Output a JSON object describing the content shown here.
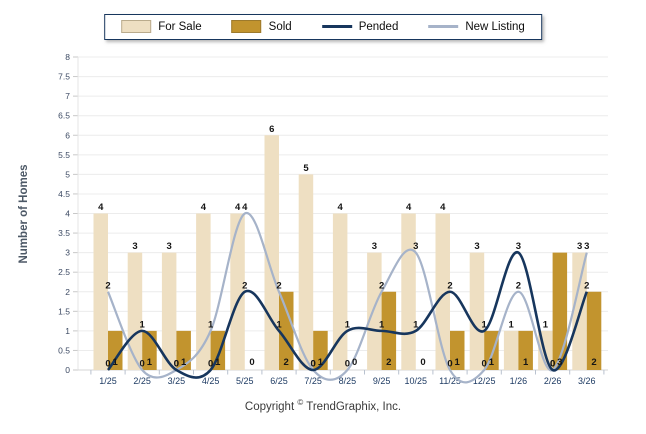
{
  "legend": {
    "position": "top"
  },
  "footer": {
    "copyright_prefix": "Copyright",
    "copyright_symbol": "©",
    "copyright_suffix": "TrendGraphix, Inc."
  },
  "chart_data": {
    "type": "combo-bar-line",
    "title": "",
    "ylabel": "Number of Homes",
    "xlabel": "",
    "ylim": [
      0,
      8
    ],
    "ytick_step": 0.5,
    "grid": true,
    "legend_position": "top",
    "categories": [
      "1/25",
      "2/25",
      "3/25",
      "4/25",
      "5/25",
      "6/25",
      "7/25",
      "8/25",
      "9/25",
      "10/25",
      "11/25",
      "12/25",
      "1/26",
      "2/26",
      "3/26"
    ],
    "series": [
      {
        "name": "For Sale",
        "type": "bar",
        "color": "#EEDFC2",
        "values": [
          4,
          3,
          3,
          4,
          4,
          6,
          5,
          4,
          3,
          4,
          4,
          3,
          1,
          1,
          3
        ]
      },
      {
        "name": "Sold",
        "type": "bar",
        "color": "#C2942E",
        "values": [
          1,
          1,
          1,
          1,
          0,
          2,
          1,
          0,
          2,
          0,
          1,
          1,
          1,
          3,
          2
        ]
      },
      {
        "name": "Pended",
        "type": "line",
        "color": "#17365D",
        "values": [
          0,
          1,
          0,
          0,
          2,
          1,
          0,
          1,
          1,
          1,
          2,
          1,
          3,
          0,
          2
        ]
      },
      {
        "name": "New Listing",
        "type": "line",
        "color": "#A6B3C9",
        "values": [
          2,
          0,
          0,
          1,
          4,
          2,
          0,
          0,
          2,
          3,
          0,
          0,
          2,
          0,
          3
        ]
      }
    ],
    "label_colors": {
      "value_labels": "#151515",
      "y_ticks": "#3C4A63",
      "x_ticks": "#1F3C64"
    }
  }
}
